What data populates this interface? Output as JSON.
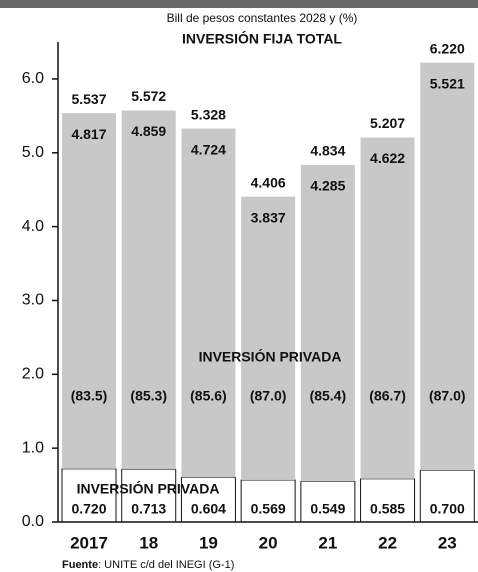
{
  "chart_data": {
    "type": "stacked_bar",
    "subtitle": "Bill de pesos constantes 2028 y (%)",
    "title": "INVERSIÓN FIJA TOTAL",
    "source_label": "Fuente",
    "source_text": ": UNITE c/d del INEGI (G-1)",
    "categories": [
      "2017",
      "18",
      "19",
      "20",
      "21",
      "22",
      "23"
    ],
    "series": [
      {
        "name": "INVERSIÓN PRIVADA",
        "color": "#ffffff",
        "values": [
          0.72,
          0.713,
          0.604,
          0.569,
          0.549,
          0.585,
          0.7
        ],
        "value_labels": [
          "0.720",
          "0.713",
          "0.604",
          "0.569",
          "0.549",
          "0.585",
          "0.700"
        ]
      },
      {
        "name": "INVERSIÓN PRIVADA",
        "color": "#c8c8c8",
        "values": [
          4.817,
          4.859,
          4.724,
          3.837,
          4.285,
          4.622,
          5.521
        ],
        "value_labels": [
          "4.817",
          "4.859",
          "4.724",
          "3.837",
          "4.285",
          "4.622",
          "5.521"
        ]
      }
    ],
    "totals": {
      "values": [
        5.537,
        5.572,
        5.328,
        4.406,
        4.834,
        5.207,
        6.22
      ],
      "value_labels": [
        "5.537",
        "5.572",
        "5.328",
        "4.406",
        "4.834",
        "5.207",
        "6.220"
      ]
    },
    "shares": {
      "values": [
        83.5,
        85.3,
        85.6,
        87.0,
        85.4,
        86.7,
        87.0
      ],
      "value_labels": [
        "(83.5)",
        "(85.3)",
        "(85.6)",
        "(87.0)",
        "(85.4)",
        "(86.7)",
        "(87.0)"
      ]
    },
    "ylim": [
      0,
      6.5
    ],
    "yticks": [
      {
        "value": 0,
        "label": "0.0"
      },
      {
        "value": 1,
        "label": "1.0"
      },
      {
        "value": 2,
        "label": "2.0"
      },
      {
        "value": 3,
        "label": "3.0"
      },
      {
        "value": 4,
        "label": "4.0"
      },
      {
        "value": 5,
        "label": "5.0"
      },
      {
        "value": 6,
        "label": "6.0"
      }
    ]
  }
}
